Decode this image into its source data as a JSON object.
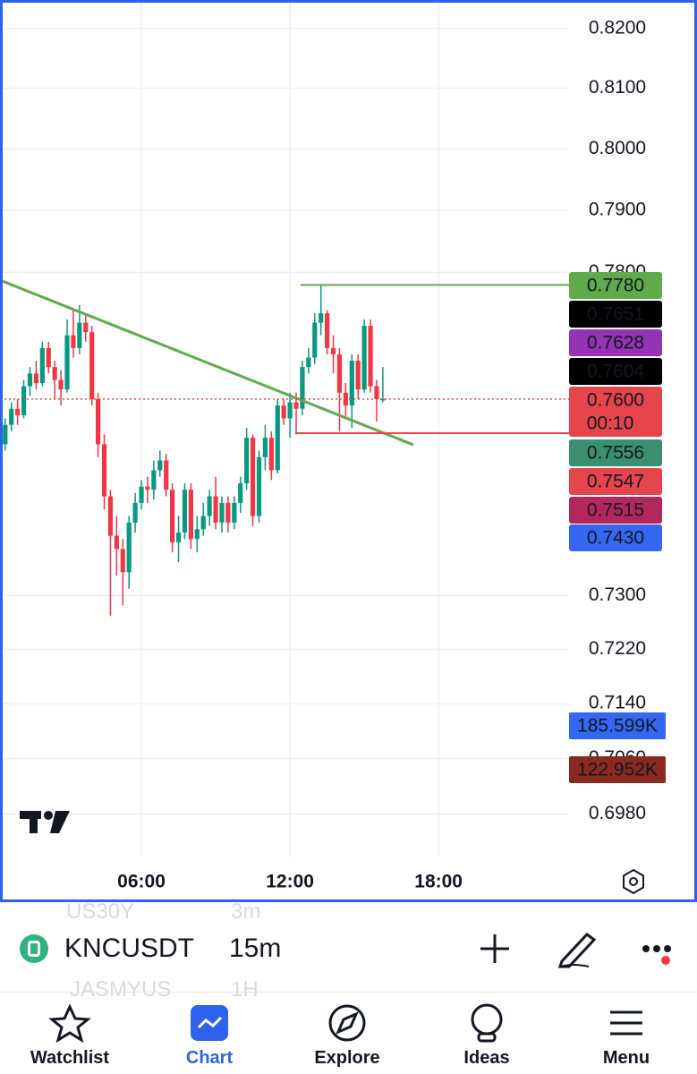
{
  "chart_data": {
    "type": "candlestick",
    "x": [
      0.5,
      0.75,
      1,
      1.25,
      1.5,
      1.75,
      2,
      2.25,
      2.5,
      2.75,
      3,
      3.25,
      3.5,
      3.75,
      4,
      4.25,
      4.5,
      4.75,
      5,
      5.25,
      5.5,
      5.75,
      6,
      6.25,
      6.5,
      6.75,
      7,
      7.25,
      7.5,
      7.75,
      8,
      8.25,
      8.5,
      8.75,
      9,
      9.25,
      9.5,
      9.75,
      10,
      10.25,
      10.5,
      10.75,
      11,
      11.25,
      11.5,
      11.75,
      12,
      12.25,
      12.5,
      12.75,
      13,
      13.25,
      13.5,
      13.75,
      14,
      14.25,
      14.5,
      14.75,
      15,
      15.25,
      15.5,
      15.75
    ],
    "open": [
      0.753,
      0.756,
      0.7585,
      0.7575,
      0.762,
      0.764,
      0.7625,
      0.768,
      0.765,
      0.763,
      0.7615,
      0.77,
      0.768,
      0.772,
      0.7705,
      0.76,
      0.753,
      0.745,
      0.739,
      0.737,
      0.7335,
      0.741,
      0.744,
      0.7465,
      0.746,
      0.749,
      0.7505,
      0.746,
      0.738,
      0.7395,
      0.746,
      0.7385,
      0.74,
      0.742,
      0.745,
      0.741,
      0.744,
      0.741,
      0.744,
      0.747,
      0.754,
      0.742,
      0.751,
      0.754,
      0.749,
      0.759,
      0.757,
      0.7595,
      0.7585,
      0.765,
      0.7665,
      0.772,
      0.7735,
      0.768,
      0.767,
      0.761,
      0.759,
      0.766,
      0.7615,
      0.7715,
      0.762,
      0.76
    ],
    "high": [
      0.757,
      0.7595,
      0.76,
      0.763,
      0.765,
      0.766,
      0.769,
      0.769,
      0.766,
      0.7645,
      0.7725,
      0.774,
      0.7748,
      0.7735,
      0.7715,
      0.761,
      0.7545,
      0.746,
      0.742,
      0.7385,
      0.742,
      0.7455,
      0.7475,
      0.748,
      0.7505,
      0.752,
      0.7515,
      0.747,
      0.742,
      0.747,
      0.747,
      0.742,
      0.744,
      0.746,
      0.748,
      0.745,
      0.745,
      0.745,
      0.748,
      0.7555,
      0.7545,
      0.752,
      0.756,
      0.755,
      0.76,
      0.76,
      0.761,
      0.761,
      0.766,
      0.768,
      0.7735,
      0.778,
      0.774,
      0.77,
      0.768,
      0.7625,
      0.767,
      0.767,
      0.7725,
      0.7725,
      0.763,
      0.765
    ],
    "low": [
      0.752,
      0.755,
      0.756,
      0.757,
      0.7605,
      0.7615,
      0.762,
      0.764,
      0.76,
      0.759,
      0.761,
      0.7665,
      0.767,
      0.769,
      0.759,
      0.751,
      0.743,
      0.727,
      0.733,
      0.7285,
      0.731,
      0.7395,
      0.743,
      0.744,
      0.7445,
      0.748,
      0.745,
      0.7365,
      0.735,
      0.7385,
      0.737,
      0.7365,
      0.739,
      0.7405,
      0.74,
      0.7395,
      0.7395,
      0.74,
      0.7425,
      0.746,
      0.7405,
      0.741,
      0.749,
      0.7475,
      0.7485,
      0.756,
      0.754,
      0.7545,
      0.7575,
      0.764,
      0.7655,
      0.77,
      0.767,
      0.764,
      0.755,
      0.757,
      0.7555,
      0.76,
      0.761,
      0.761,
      0.7565,
      0.7595
    ],
    "close": [
      0.756,
      0.7585,
      0.7575,
      0.762,
      0.764,
      0.7625,
      0.768,
      0.765,
      0.763,
      0.7615,
      0.77,
      0.768,
      0.772,
      0.7705,
      0.76,
      0.753,
      0.745,
      0.739,
      0.737,
      0.7335,
      0.741,
      0.744,
      0.7465,
      0.746,
      0.749,
      0.7505,
      0.746,
      0.738,
      0.7395,
      0.746,
      0.7385,
      0.74,
      0.742,
      0.745,
      0.741,
      0.744,
      0.741,
      0.744,
      0.747,
      0.754,
      0.742,
      0.751,
      0.754,
      0.749,
      0.759,
      0.757,
      0.7595,
      0.7585,
      0.765,
      0.7665,
      0.772,
      0.7735,
      0.768,
      0.767,
      0.761,
      0.759,
      0.766,
      0.7615,
      0.7715,
      0.762,
      0.76,
      0.76
    ],
    "up_color": "#089981",
    "down_color": "#f23645",
    "log_scale": true,
    "grid": true,
    "ylim": [
      0.6859,
      0.8248
    ],
    "yticks": [
      {
        "value": 0.82,
        "label": "0.8200"
      },
      {
        "value": 0.81,
        "label": "0.8100"
      },
      {
        "value": 0.8,
        "label": "0.8000"
      },
      {
        "value": 0.79,
        "label": "0.7900"
      },
      {
        "value": 0.78,
        "label": "0.7800"
      },
      {
        "value": 0.73,
        "label": "0.7300"
      },
      {
        "value": 0.722,
        "label": "0.7220"
      },
      {
        "value": 0.714,
        "label": "0.7140"
      },
      {
        "value": 0.706,
        "label": "0.7060"
      },
      {
        "value": 0.698,
        "label": "0.6980"
      }
    ],
    "xlim": [
      0.29,
      23.27
    ],
    "xticks": [
      {
        "value": 6,
        "label": "06:00"
      },
      {
        "value": 12,
        "label": "12:00"
      },
      {
        "value": 18,
        "label": "18:00"
      }
    ],
    "price_labels": [
      {
        "value": 0.778,
        "label": "0.7780",
        "color": "#5fab4c"
      },
      {
        "value": 0.7651,
        "label": "0.7651",
        "color": "#000000"
      },
      {
        "value": 0.7628,
        "label": "0.7628",
        "color": "#9334b4"
      },
      {
        "value": 0.7604,
        "label": "0.7604",
        "color": "#000000"
      },
      {
        "value": 0.76,
        "label": "0.7600",
        "color": "#e5454b"
      },
      {
        "value": 0.7556,
        "label": "0.7556",
        "color": "#3b8f6e"
      },
      {
        "value": 0.7547,
        "label": "0.7547",
        "color": "#e5454b"
      },
      {
        "value": 0.7515,
        "label": "0.7515",
        "color": "#b2285c"
      },
      {
        "value": 0.743,
        "label": "0.7430",
        "color": "#3567f0"
      }
    ],
    "countdown": "00:10",
    "volume_labels": [
      {
        "label": "185.599K",
        "color": "#3567f0"
      },
      {
        "label": "122.952K",
        "color": "#8a2a20"
      }
    ]
  },
  "symbol_bar": {
    "symbol": "KNCUSDT",
    "interval": "15m",
    "ghost_above": [
      "US30Y",
      "3m"
    ],
    "ghost_below": [
      "JASMYUS",
      "1H"
    ]
  },
  "nav": {
    "items": [
      "Watchlist",
      "Chart",
      "Explore",
      "Ideas",
      "Menu"
    ]
  }
}
